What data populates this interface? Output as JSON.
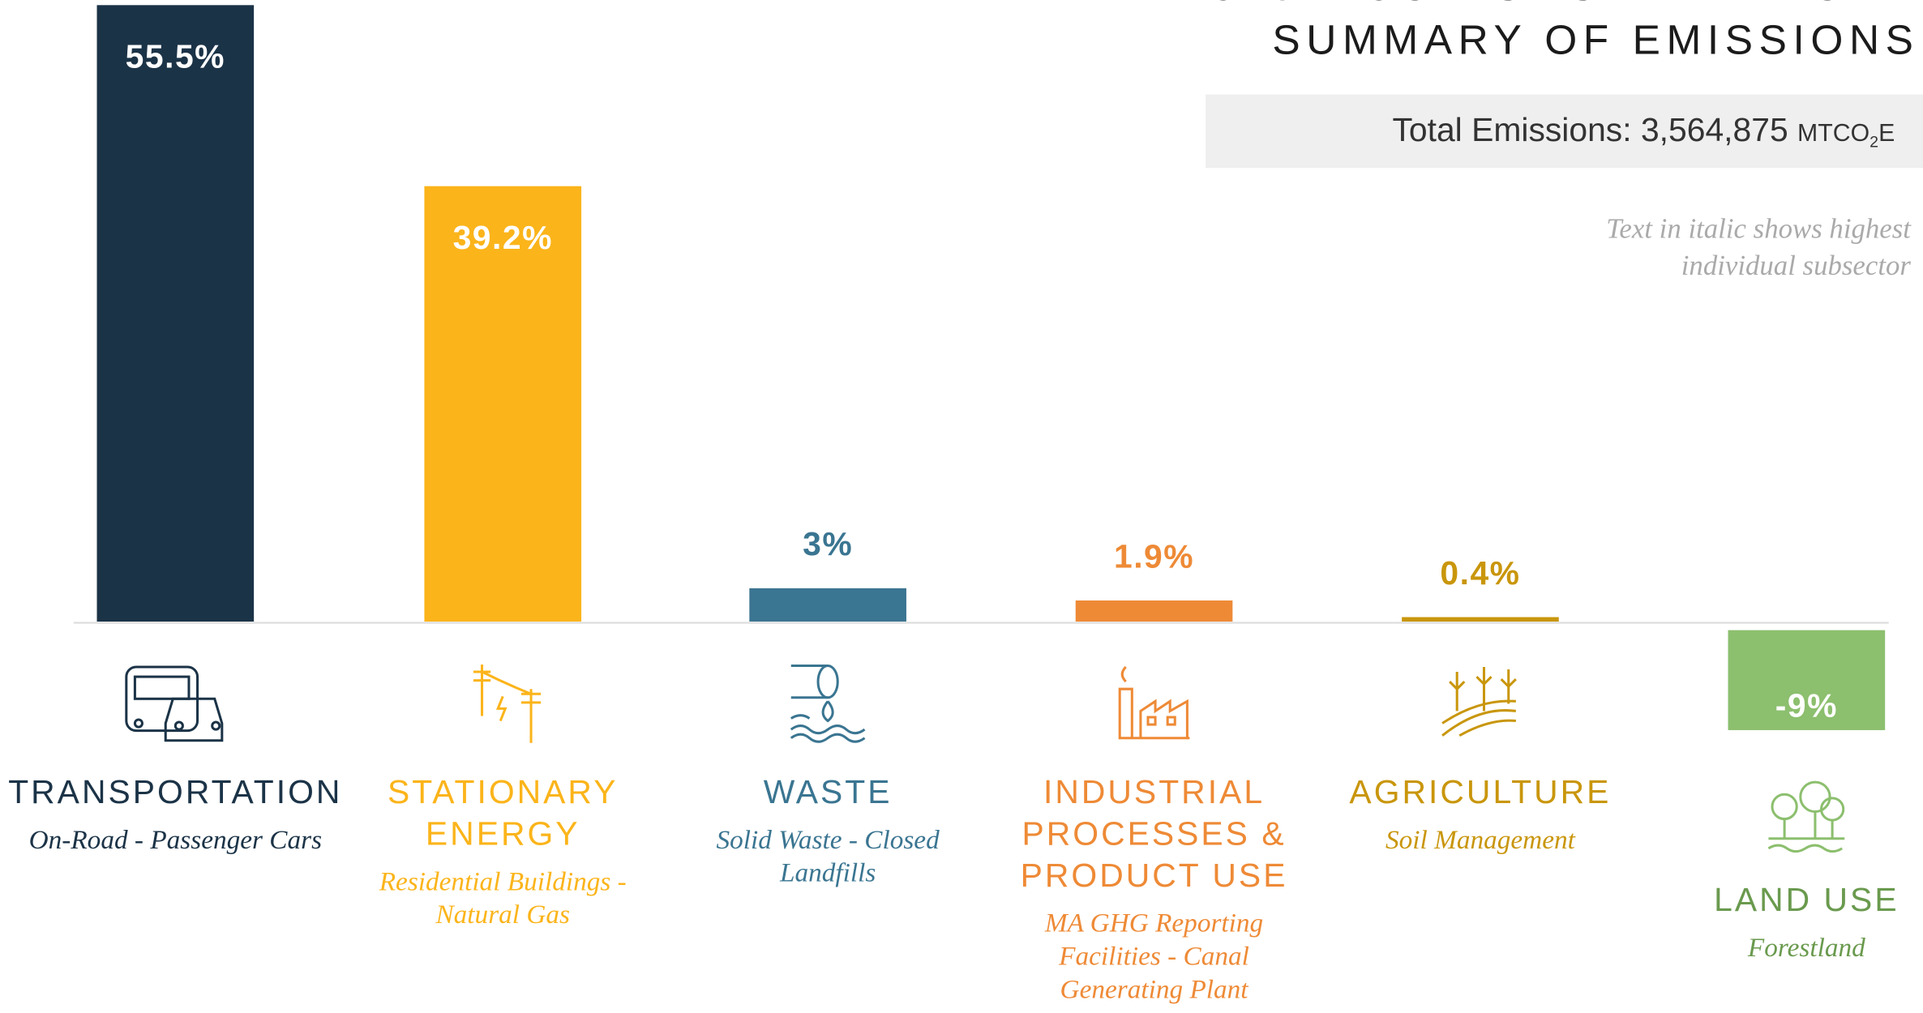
{
  "chart_data": {
    "type": "bar",
    "title": "CAPE COD GHG INVENTORY",
    "subtitle": "SUMMARY OF EMISSIONS",
    "total": {
      "label": "Total Emissions:",
      "value": "3,564,875",
      "unit": "MTCO",
      "unit_sub": "2",
      "unit_end": "E"
    },
    "note": "Text in italic shows highest individual subsector",
    "categories": [
      "TRANSPORTATION",
      "STATIONARY ENERGY",
      "WASTE",
      "INDUSTRIAL PROCESSES & PRODUCT USE",
      "AGRICULTURE",
      "LAND USE"
    ],
    "subsectors": [
      "On-Road - Passenger Cars",
      "Residential Buildings - Natural Gas",
      "Solid Waste - Closed Landfills",
      "MA GHG Reporting Facilities - Canal Generating Plant",
      "Soil Management",
      "Forestland"
    ],
    "values": [
      55.5,
      39.2,
      3,
      1.9,
      0.4,
      -9
    ],
    "value_labels": [
      "55.5%",
      "39.2%",
      "3%",
      "1.9%",
      "0.4%",
      "-9%"
    ],
    "colors": [
      "#1b3347",
      "#fbb41a",
      "#3a7591",
      "#ee8a36",
      "#c9960c",
      "#8cbf6e"
    ]
  }
}
